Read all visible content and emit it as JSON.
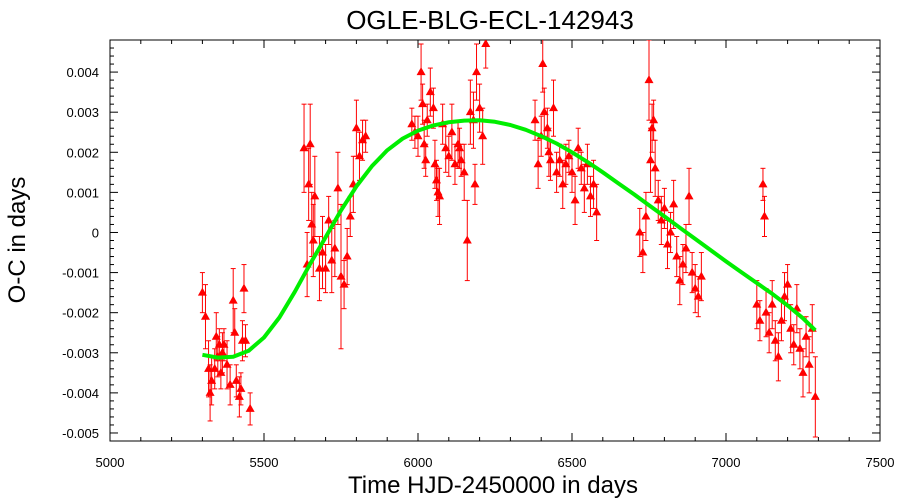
{
  "chart_data": {
    "type": "scatter",
    "title": "OGLE-BLG-ECL-142943",
    "xlabel": "Time HJD-2450000 in days",
    "ylabel": "O-C in days",
    "xlim": [
      5000,
      7500
    ],
    "ylim": [
      -0.0052,
      0.0048
    ],
    "x_ticks": [
      "5000",
      "5500",
      "6000",
      "6500",
      "7000",
      "7500"
    ],
    "y_ticks": [
      "-0.005",
      "-0.004",
      "-0.003",
      "-0.002",
      "-0.001",
      "0",
      "0.001",
      "0.002",
      "0.003",
      "0.004"
    ],
    "grid": false,
    "colors": {
      "points": "#ff0000",
      "fit": "#00ee00",
      "frame": "#000000"
    },
    "series": [
      {
        "type": "scatter_errorbars",
        "marker": "triangle",
        "points": [
          {
            "x": 5300,
            "y": -0.0015,
            "err": 0.0005
          },
          {
            "x": 5310,
            "y": -0.0021,
            "err": 0.0008
          },
          {
            "x": 5320,
            "y": -0.0034,
            "err": 0.0007
          },
          {
            "x": 5325,
            "y": -0.004,
            "err": 0.0007
          },
          {
            "x": 5330,
            "y": -0.0037,
            "err": 0.0006
          },
          {
            "x": 5340,
            "y": -0.0034,
            "err": 0.0005
          },
          {
            "x": 5345,
            "y": -0.0026,
            "err": 0.0006
          },
          {
            "x": 5350,
            "y": -0.0031,
            "err": 0.0005
          },
          {
            "x": 5355,
            "y": -0.0028,
            "err": 0.0004
          },
          {
            "x": 5360,
            "y": -0.0035,
            "err": 0.0004
          },
          {
            "x": 5365,
            "y": -0.003,
            "err": 0.0005
          },
          {
            "x": 5370,
            "y": -0.0028,
            "err": 0.0004
          },
          {
            "x": 5380,
            "y": -0.0033,
            "err": 0.0006
          },
          {
            "x": 5390,
            "y": -0.0038,
            "err": 0.0005
          },
          {
            "x": 5400,
            "y": -0.0017,
            "err": 0.0008
          },
          {
            "x": 5405,
            "y": -0.0025,
            "err": 0.0006
          },
          {
            "x": 5410,
            "y": -0.0037,
            "err": 0.0004
          },
          {
            "x": 5420,
            "y": -0.0041,
            "err": 0.0005
          },
          {
            "x": 5425,
            "y": -0.0039,
            "err": 0.0004
          },
          {
            "x": 5430,
            "y": -0.0027,
            "err": 0.0005
          },
          {
            "x": 5435,
            "y": -0.0014,
            "err": 0.0006
          },
          {
            "x": 5440,
            "y": -0.0027,
            "err": 0.0004
          },
          {
            "x": 5455,
            "y": -0.0044,
            "err": 0.0004
          },
          {
            "x": 5630,
            "y": 0.0021,
            "err": 0.0011
          },
          {
            "x": 5640,
            "y": -0.0008,
            "err": 0.0008
          },
          {
            "x": 5645,
            "y": 0.0012,
            "err": 0.0009
          },
          {
            "x": 5650,
            "y": 0.0022,
            "err": 0.001
          },
          {
            "x": 5655,
            "y": 0.0002,
            "err": 0.0008
          },
          {
            "x": 5660,
            "y": -0.0002,
            "err": 0.0009
          },
          {
            "x": 5665,
            "y": 0.0009,
            "err": 0.001
          },
          {
            "x": 5680,
            "y": -0.0009,
            "err": 0.0008
          },
          {
            "x": 5690,
            "y": -0.0005,
            "err": 0.0009
          },
          {
            "x": 5700,
            "y": -0.0009,
            "err": 0.0006
          },
          {
            "x": 5710,
            "y": 0.0003,
            "err": 0.0006
          },
          {
            "x": 5720,
            "y": -0.0007,
            "err": 0.0008
          },
          {
            "x": 5730,
            "y": -0.0004,
            "err": 0.0007
          },
          {
            "x": 5740,
            "y": 0.0011,
            "err": 0.0009
          },
          {
            "x": 5750,
            "y": -0.0011,
            "err": 0.0018
          },
          {
            "x": 5760,
            "y": -0.0013,
            "err": 0.0006
          },
          {
            "x": 5770,
            "y": -0.0006,
            "err": 0.0007
          },
          {
            "x": 5780,
            "y": 0.0004,
            "err": 0.0005
          },
          {
            "x": 5790,
            "y": 0.0012,
            "err": 0.0007
          },
          {
            "x": 5800,
            "y": 0.0026,
            "err": 0.0007
          },
          {
            "x": 5810,
            "y": 0.0019,
            "err": 0.0006
          },
          {
            "x": 5820,
            "y": 0.0023,
            "err": 0.0005
          },
          {
            "x": 5830,
            "y": 0.0024,
            "err": 0.0004
          },
          {
            "x": 5980,
            "y": 0.0027,
            "err": 0.0004
          },
          {
            "x": 5990,
            "y": 0.0025,
            "err": 0.0004
          },
          {
            "x": 6000,
            "y": 0.0024,
            "err": 0.0005
          },
          {
            "x": 6010,
            "y": 0.004,
            "err": 0.0007
          },
          {
            "x": 6015,
            "y": 0.0032,
            "err": 0.0005
          },
          {
            "x": 6020,
            "y": 0.0022,
            "err": 0.0006
          },
          {
            "x": 6025,
            "y": 0.0018,
            "err": 0.0004
          },
          {
            "x": 6030,
            "y": 0.0028,
            "err": 0.0004
          },
          {
            "x": 6040,
            "y": 0.0035,
            "err": 0.0006
          },
          {
            "x": 6050,
            "y": 0.0031,
            "err": 0.0005
          },
          {
            "x": 6055,
            "y": 0.0017,
            "err": 0.0006
          },
          {
            "x": 6060,
            "y": 0.0013,
            "err": 0.0005
          },
          {
            "x": 6065,
            "y": 0.001,
            "err": 0.0006
          },
          {
            "x": 6070,
            "y": 0.0009,
            "err": 0.0007
          },
          {
            "x": 6080,
            "y": 0.0027,
            "err": 0.0005
          },
          {
            "x": 6090,
            "y": 0.0021,
            "err": 0.0006
          },
          {
            "x": 6100,
            "y": 0.0019,
            "err": 0.0005
          },
          {
            "x": 6110,
            "y": 0.0025,
            "err": 0.0007
          },
          {
            "x": 6120,
            "y": 0.0017,
            "err": 0.0005
          },
          {
            "x": 6130,
            "y": 0.0022,
            "err": 0.0006
          },
          {
            "x": 6135,
            "y": 0.0021,
            "err": 0.0005
          },
          {
            "x": 6140,
            "y": 0.0018,
            "err": 0.0004
          },
          {
            "x": 6150,
            "y": 0.0015,
            "err": 0.0007
          },
          {
            "x": 6160,
            "y": -0.0002,
            "err": 0.001
          },
          {
            "x": 6170,
            "y": 0.003,
            "err": 0.0008
          },
          {
            "x": 6180,
            "y": 0.0028,
            "err": 0.0007
          },
          {
            "x": 6185,
            "y": 0.0012,
            "err": 0.0005
          },
          {
            "x": 6190,
            "y": 0.004,
            "err": 0.0007
          },
          {
            "x": 6200,
            "y": 0.0031,
            "err": 0.0006
          },
          {
            "x": 6210,
            "y": 0.0024,
            "err": 0.0007
          },
          {
            "x": 6220,
            "y": 0.0047,
            "err": 0.0006
          },
          {
            "x": 6380,
            "y": 0.0028,
            "err": 0.0005
          },
          {
            "x": 6390,
            "y": 0.0017,
            "err": 0.0006
          },
          {
            "x": 6400,
            "y": 0.0024,
            "err": 0.0005
          },
          {
            "x": 6405,
            "y": 0.0042,
            "err": 0.0007
          },
          {
            "x": 6410,
            "y": 0.003,
            "err": 0.0006
          },
          {
            "x": 6420,
            "y": 0.0026,
            "err": 0.0005
          },
          {
            "x": 6425,
            "y": 0.002,
            "err": 0.0006
          },
          {
            "x": 6430,
            "y": 0.0018,
            "err": 0.0005
          },
          {
            "x": 6440,
            "y": 0.0031,
            "err": 0.0007
          },
          {
            "x": 6450,
            "y": 0.0015,
            "err": 0.0005
          },
          {
            "x": 6460,
            "y": 0.0018,
            "err": 0.0004
          },
          {
            "x": 6470,
            "y": 0.0012,
            "err": 0.0006
          },
          {
            "x": 6480,
            "y": 0.0017,
            "err": 0.0005
          },
          {
            "x": 6490,
            "y": 0.0019,
            "err": 0.0004
          },
          {
            "x": 6500,
            "y": 0.0015,
            "err": 0.0005
          },
          {
            "x": 6510,
            "y": 0.0008,
            "err": 0.0006
          },
          {
            "x": 6520,
            "y": 0.0021,
            "err": 0.0005
          },
          {
            "x": 6530,
            "y": 0.0016,
            "err": 0.0004
          },
          {
            "x": 6540,
            "y": 0.0011,
            "err": 0.0006
          },
          {
            "x": 6550,
            "y": 0.0017,
            "err": 0.0005
          },
          {
            "x": 6560,
            "y": 0.0009,
            "err": 0.0005
          },
          {
            "x": 6570,
            "y": 0.0012,
            "err": 0.0006
          },
          {
            "x": 6580,
            "y": 0.0005,
            "err": 0.0007
          },
          {
            "x": 6750,
            "y": 0.0038,
            "err": 0.001
          },
          {
            "x": 6755,
            "y": 0.0018,
            "err": 0.0008
          },
          {
            "x": 6760,
            "y": 0.0026,
            "err": 0.0006
          },
          {
            "x": 6765,
            "y": 0.0028,
            "err": 0.0005
          },
          {
            "x": 6770,
            "y": 0.0016,
            "err": 0.0007
          },
          {
            "x": 6720,
            "y": 0.0,
            "err": 0.0006
          },
          {
            "x": 6730,
            "y": -0.0005,
            "err": 0.0005
          },
          {
            "x": 6740,
            "y": 0.0004,
            "err": 0.0006
          },
          {
            "x": 6780,
            "y": 0.0008,
            "err": 0.0005
          },
          {
            "x": 6790,
            "y": 0.0003,
            "err": 0.0006
          },
          {
            "x": 6800,
            "y": 0.0006,
            "err": 0.0005
          },
          {
            "x": 6810,
            "y": -0.0003,
            "err": 0.0006
          },
          {
            "x": 6820,
            "y": 0.0,
            "err": 0.0005
          },
          {
            "x": 6830,
            "y": 0.0007,
            "err": 0.0006
          },
          {
            "x": 6840,
            "y": -0.0006,
            "err": 0.0005
          },
          {
            "x": 6850,
            "y": -0.0012,
            "err": 0.0006
          },
          {
            "x": 6860,
            "y": -0.0008,
            "err": 0.0005
          },
          {
            "x": 6870,
            "y": -0.0004,
            "err": 0.0006
          },
          {
            "x": 6880,
            "y": 0.0009,
            "err": 0.0007
          },
          {
            "x": 6890,
            "y": -0.001,
            "err": 0.0005
          },
          {
            "x": 6900,
            "y": -0.0014,
            "err": 0.0006
          },
          {
            "x": 6910,
            "y": -0.0016,
            "err": 0.0005
          },
          {
            "x": 6920,
            "y": -0.0011,
            "err": 0.0006
          },
          {
            "x": 7100,
            "y": -0.0018,
            "err": 0.0006
          },
          {
            "x": 7110,
            "y": -0.0022,
            "err": 0.0005
          },
          {
            "x": 7120,
            "y": 0.0012,
            "err": 0.0004
          },
          {
            "x": 7125,
            "y": 0.0004,
            "err": 0.0005
          },
          {
            "x": 7130,
            "y": -0.002,
            "err": 0.0006
          },
          {
            "x": 7140,
            "y": -0.0025,
            "err": 0.0005
          },
          {
            "x": 7150,
            "y": -0.0018,
            "err": 0.0006
          },
          {
            "x": 7160,
            "y": -0.0027,
            "err": 0.0005
          },
          {
            "x": 7170,
            "y": -0.0031,
            "err": 0.0006
          },
          {
            "x": 7180,
            "y": -0.0022,
            "err": 0.0005
          },
          {
            "x": 7190,
            "y": -0.0016,
            "err": 0.0006
          },
          {
            "x": 7200,
            "y": -0.0013,
            "err": 0.0005
          },
          {
            "x": 7210,
            "y": -0.0024,
            "err": 0.0006
          },
          {
            "x": 7220,
            "y": -0.0028,
            "err": 0.0005
          },
          {
            "x": 7230,
            "y": -0.0019,
            "err": 0.0006
          },
          {
            "x": 7240,
            "y": -0.0029,
            "err": 0.0005
          },
          {
            "x": 7250,
            "y": -0.0035,
            "err": 0.0006
          },
          {
            "x": 7260,
            "y": -0.0026,
            "err": 0.0005
          },
          {
            "x": 7270,
            "y": -0.0033,
            "err": 0.0007
          },
          {
            "x": 7280,
            "y": -0.0024,
            "err": 0.0006
          },
          {
            "x": 7290,
            "y": -0.0041,
            "err": 0.001
          }
        ]
      },
      {
        "type": "line",
        "x": [
          5300,
          5350,
          5400,
          5450,
          5500,
          5550,
          5600,
          5650,
          5700,
          5750,
          5800,
          5850,
          5900,
          5950,
          6000,
          6050,
          6100,
          6150,
          6200,
          6250,
          6300,
          6350,
          6400,
          6450,
          6500,
          6550,
          6600,
          6650,
          6700,
          6750,
          6800,
          6850,
          6900,
          6950,
          7000,
          7050,
          7100,
          7150,
          7200,
          7250,
          7290
        ],
        "y": [
          -0.00305,
          -0.00312,
          -0.0031,
          -0.00295,
          -0.00262,
          -0.00212,
          -0.00148,
          -0.00078,
          -0.00012,
          0.00055,
          0.00115,
          0.00165,
          0.00205,
          0.00234,
          0.00254,
          0.00267,
          0.00275,
          0.00279,
          0.0028,
          0.00276,
          0.00268,
          0.00256,
          0.0024,
          0.00222,
          0.002,
          0.00176,
          0.0015,
          0.00123,
          0.00096,
          0.00068,
          0.0004,
          0.00012,
          -0.00016,
          -0.00044,
          -0.00072,
          -0.00099,
          -0.00126,
          -0.00153,
          -0.00182,
          -0.00214,
          -0.00244
        ]
      }
    ]
  }
}
